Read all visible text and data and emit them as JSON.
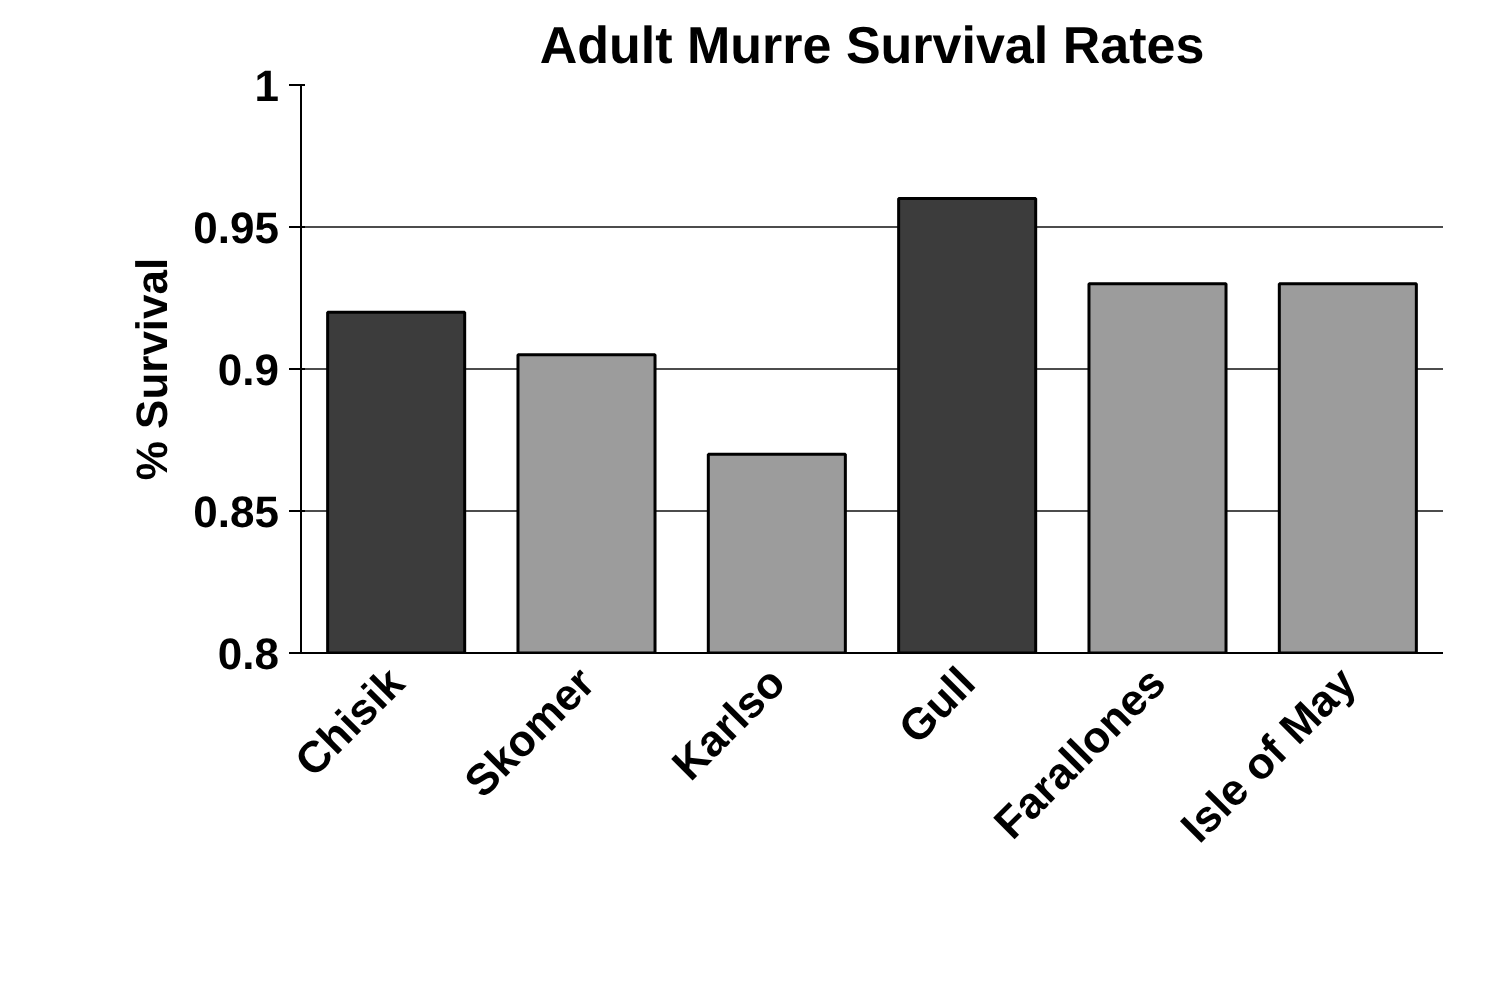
{
  "chart_data": {
    "type": "bar",
    "title": "Adult Murre Survival Rates",
    "ylabel": "% Survival",
    "categories": [
      "Chisik",
      "Skomer",
      "Karlso",
      "Gull",
      "Farallones",
      "Isle of May"
    ],
    "values": [
      0.92,
      0.905,
      0.87,
      0.96,
      0.93,
      0.93
    ],
    "colors": [
      "#3c3c3c",
      "#9c9c9c",
      "#9c9c9c",
      "#3c3c3c",
      "#9c9c9c",
      "#9c9c9c"
    ],
    "ylim": [
      0.8,
      1
    ],
    "yticks": [
      0.8,
      0.85,
      0.9,
      0.95,
      1
    ],
    "grid": "y"
  }
}
